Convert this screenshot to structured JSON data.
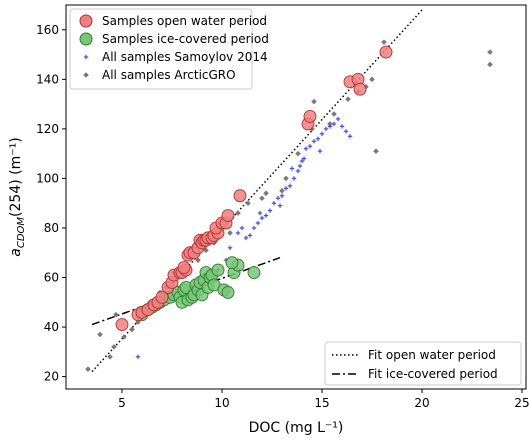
{
  "chart_data": {
    "type": "scatter",
    "xlabel": "DOC (mg L⁻¹)",
    "ylabel_main": "a",
    "ylabel_sub": "CDOM",
    "ylabel_rest": "(254) (m⁻¹)",
    "xlim": [
      2.2,
      25.2
    ],
    "ylim": [
      15,
      170
    ],
    "xticks": [
      5,
      10,
      15,
      20,
      25
    ],
    "yticks": [
      20,
      40,
      60,
      80,
      100,
      120,
      140,
      160
    ],
    "xtick_labels": [
      "5",
      "10",
      "15",
      "20",
      "25"
    ],
    "ytick_labels": [
      "20",
      "40",
      "60",
      "80",
      "100",
      "120",
      "140",
      "160"
    ],
    "grid": false,
    "legend_top": {
      "position": "top-left",
      "entries": [
        "Samples open water period",
        "Samples ice-covered period",
        "All samples Samoylov 2014",
        "All samples ArcticGRO"
      ]
    },
    "legend_bottom": {
      "position": "bottom-right",
      "entries": [
        "Fit open water period",
        "Fit ice-covered period"
      ]
    },
    "colors": {
      "open_fill": "#f08080",
      "open_edge": "#b03030",
      "ice_fill": "#77c777",
      "ice_edge": "#2f7a2f",
      "samoylov": "#4a4ae8",
      "arcticgro": "#7a7a7a"
    },
    "series": [
      {
        "name": "Samples open water period",
        "marker": "circle-large",
        "points": [
          [
            5.0,
            41
          ],
          [
            5.8,
            45
          ],
          [
            6.0,
            46
          ],
          [
            6.3,
            47
          ],
          [
            6.6,
            49
          ],
          [
            6.8,
            50
          ],
          [
            7.0,
            52
          ],
          [
            7.3,
            56
          ],
          [
            7.5,
            58
          ],
          [
            7.6,
            61
          ],
          [
            7.9,
            62
          ],
          [
            8.0,
            62
          ],
          [
            8.2,
            63
          ],
          [
            8.1,
            64
          ],
          [
            8.3,
            69
          ],
          [
            8.4,
            70
          ],
          [
            8.6,
            70
          ],
          [
            8.8,
            72
          ],
          [
            8.9,
            75
          ],
          [
            9.0,
            74
          ],
          [
            9.1,
            75
          ],
          [
            9.2,
            75
          ],
          [
            9.3,
            76
          ],
          [
            9.5,
            76
          ],
          [
            9.6,
            77
          ],
          [
            9.8,
            78
          ],
          [
            9.7,
            80
          ],
          [
            10.0,
            82
          ],
          [
            10.2,
            82
          ],
          [
            10.3,
            85
          ],
          [
            10.9,
            93
          ],
          [
            14.3,
            122
          ],
          [
            14.4,
            125
          ],
          [
            16.4,
            139
          ],
          [
            16.8,
            140
          ],
          [
            16.9,
            136
          ],
          [
            18.2,
            151
          ]
        ]
      },
      {
        "name": "Samples ice-covered period",
        "marker": "circle-large",
        "points": [
          [
            6.0,
            45
          ],
          [
            6.3,
            47
          ],
          [
            6.5,
            48
          ],
          [
            6.7,
            49
          ],
          [
            6.9,
            50
          ],
          [
            7.1,
            51
          ],
          [
            7.4,
            52
          ],
          [
            7.6,
            53
          ],
          [
            7.8,
            54
          ],
          [
            7.9,
            52
          ],
          [
            8.0,
            50
          ],
          [
            8.1,
            55
          ],
          [
            8.2,
            56
          ],
          [
            8.3,
            51
          ],
          [
            8.5,
            52
          ],
          [
            8.6,
            53
          ],
          [
            8.7,
            57
          ],
          [
            8.8,
            55
          ],
          [
            8.9,
            58
          ],
          [
            9.0,
            53
          ],
          [
            9.1,
            59
          ],
          [
            9.2,
            62
          ],
          [
            9.3,
            56
          ],
          [
            9.4,
            60
          ],
          [
            9.5,
            61
          ],
          [
            9.6,
            57
          ],
          [
            9.8,
            63
          ],
          [
            10.1,
            55
          ],
          [
            10.3,
            54
          ],
          [
            10.6,
            62
          ],
          [
            10.8,
            65
          ],
          [
            11.6,
            62
          ],
          [
            10.5,
            66
          ]
        ]
      },
      {
        "name": "All samples Samoylov 2014",
        "marker": "plus",
        "points": [
          [
            5.8,
            28
          ],
          [
            9.3,
            58
          ],
          [
            9.8,
            63
          ],
          [
            10.2,
            67
          ],
          [
            10.4,
            72
          ],
          [
            10.8,
            78
          ],
          [
            11.0,
            80
          ],
          [
            11.2,
            76
          ],
          [
            11.4,
            77
          ],
          [
            11.6,
            80
          ],
          [
            11.8,
            82
          ],
          [
            12.0,
            84
          ],
          [
            12.2,
            85
          ],
          [
            12.4,
            87
          ],
          [
            12.6,
            90
          ],
          [
            12.8,
            92
          ],
          [
            13.0,
            93
          ],
          [
            13.2,
            96
          ],
          [
            13.4,
            97
          ],
          [
            13.6,
            100
          ],
          [
            13.8,
            103
          ],
          [
            13.9,
            105
          ],
          [
            14.0,
            107
          ],
          [
            14.1,
            108
          ],
          [
            14.2,
            112
          ],
          [
            14.4,
            113
          ],
          [
            14.6,
            115
          ],
          [
            14.8,
            116
          ],
          [
            15.0,
            118
          ],
          [
            15.2,
            120
          ],
          [
            15.4,
            121
          ],
          [
            15.6,
            122
          ],
          [
            15.8,
            124
          ],
          [
            16.0,
            121
          ],
          [
            16.2,
            119
          ],
          [
            16.4,
            117
          ],
          [
            14.9,
            111
          ],
          [
            13.5,
            104
          ],
          [
            12.9,
            89
          ],
          [
            11.9,
            86
          ]
        ]
      },
      {
        "name": "All samples ArcticGRO",
        "marker": "diamond",
        "points": [
          [
            3.3,
            23
          ],
          [
            4.4,
            28
          ],
          [
            4.6,
            32
          ],
          [
            5.1,
            36
          ],
          [
            5.5,
            39
          ],
          [
            5.8,
            42
          ],
          [
            6.1,
            45
          ],
          [
            6.4,
            50
          ],
          [
            6.9,
            54
          ],
          [
            7.2,
            56
          ],
          [
            7.6,
            62
          ],
          [
            8.2,
            64
          ],
          [
            8.8,
            67
          ],
          [
            9.2,
            71
          ],
          [
            9.6,
            74
          ],
          [
            10.4,
            78
          ],
          [
            10.8,
            86
          ],
          [
            11.3,
            90
          ],
          [
            12.0,
            92
          ],
          [
            13.0,
            95
          ],
          [
            13.8,
            110
          ],
          [
            14.5,
            120
          ],
          [
            15.4,
            122
          ],
          [
            15.6,
            126
          ],
          [
            16.3,
            132
          ],
          [
            16.8,
            135
          ],
          [
            17.2,
            137
          ],
          [
            17.5,
            140
          ],
          [
            18.1,
            155
          ],
          [
            17.7,
            111
          ],
          [
            23.4,
            151
          ],
          [
            23.4,
            146
          ],
          [
            14.6,
            131
          ],
          [
            13.2,
            100
          ],
          [
            12.2,
            94
          ],
          [
            7.0,
            52
          ],
          [
            4.7,
            45
          ],
          [
            3.9,
            37
          ]
        ]
      }
    ],
    "fits": [
      {
        "name": "Fit open water period",
        "style": "dotted",
        "x": [
          3.5,
          20.0
        ],
        "y": [
          22,
          168
        ]
      },
      {
        "name": "Fit ice-covered period",
        "style": "dashdot",
        "x": [
          3.5,
          12.9
        ],
        "y": [
          41,
          68
        ]
      }
    ]
  }
}
